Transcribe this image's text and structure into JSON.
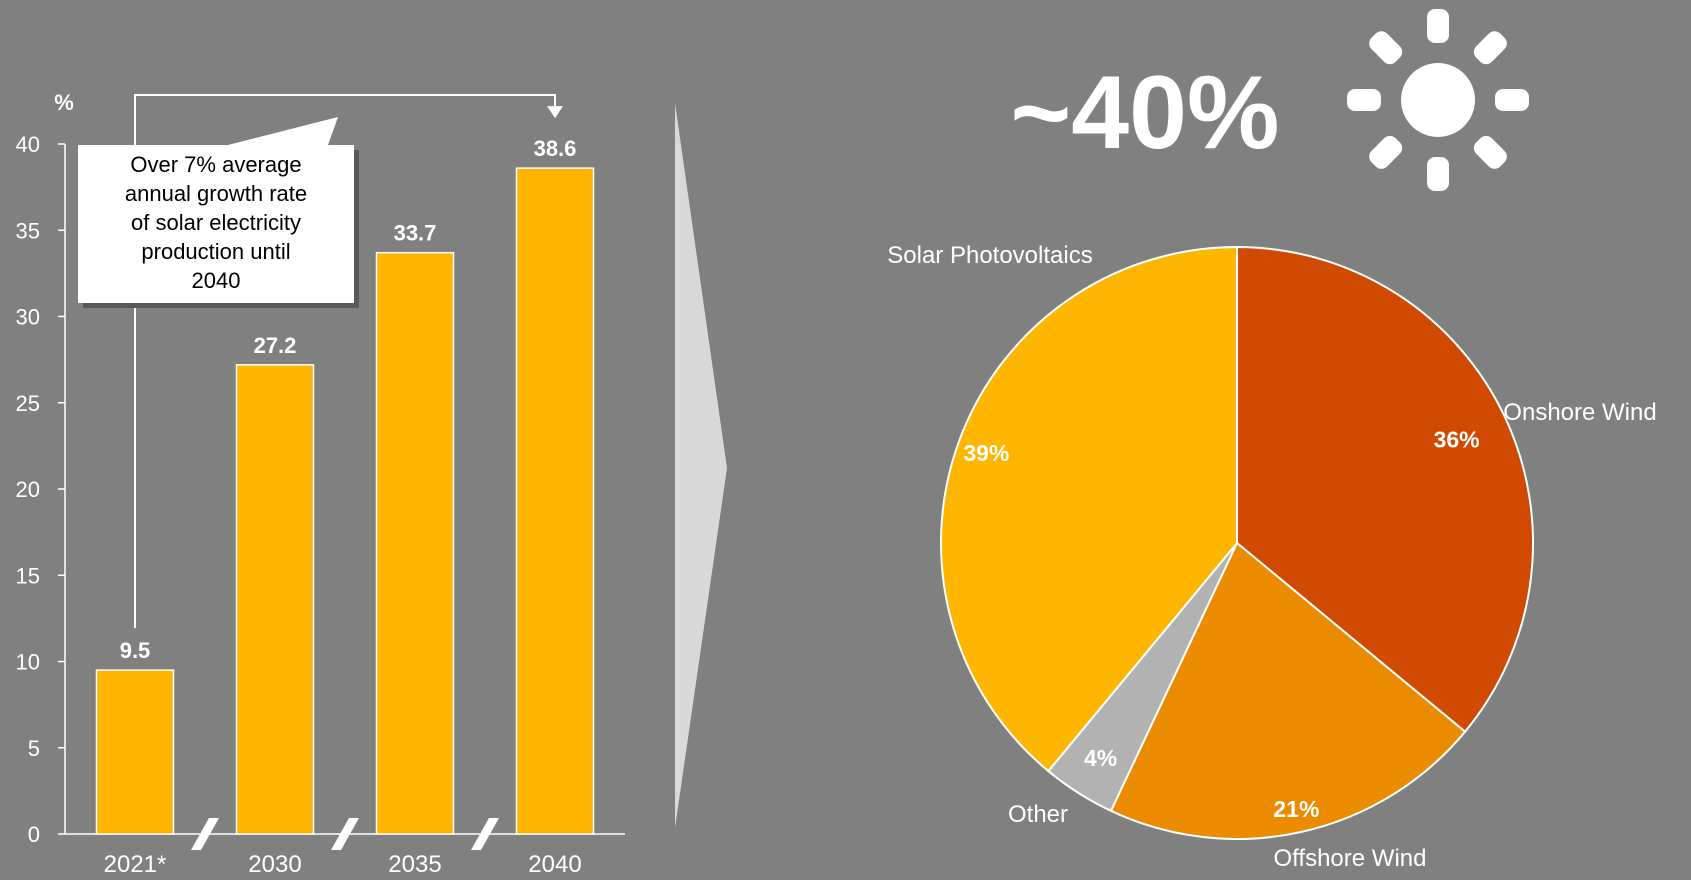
{
  "colors": {
    "background": "#808080",
    "bar": "#FFB400",
    "white": "#FFFFFF",
    "arrow_shape": "#D9D9D9",
    "onshore": "#D04A02",
    "offshore": "#EB8C00",
    "other": "#B2B2B2",
    "solar": "#FFB600"
  },
  "headline": {
    "text": "~40%",
    "icon": "sun-icon"
  },
  "callout": {
    "text": "Over 7% average annual growth rate of solar electricity production until 2040"
  },
  "chart_data": [
    {
      "type": "bar",
      "ylabel": "%",
      "ylim": [
        0,
        40
      ],
      "yticks": [
        0,
        5,
        10,
        15,
        20,
        25,
        30,
        35,
        40
      ],
      "categories": [
        "2021*",
        "2030",
        "2035",
        "2040"
      ],
      "values": [
        9.5,
        27.2,
        33.7,
        38.6
      ],
      "data_labels": [
        "9.5",
        "27.2",
        "33.7",
        "38.6"
      ],
      "axis_breaks": true,
      "grid": false
    },
    {
      "type": "pie",
      "slices": [
        {
          "label": "Onshore Wind",
          "value": 36,
          "value_label": "36%",
          "color": "#D04A02"
        },
        {
          "label": "Offshore Wind",
          "value": 21,
          "value_label": "21%",
          "color": "#EB8C00"
        },
        {
          "label": "Other",
          "value": 4,
          "value_label": "4%",
          "color": "#B2B2B2"
        },
        {
          "label": "Solar Photovoltaics",
          "value": 39,
          "value_label": "39%",
          "color": "#FFB600"
        }
      ]
    }
  ]
}
